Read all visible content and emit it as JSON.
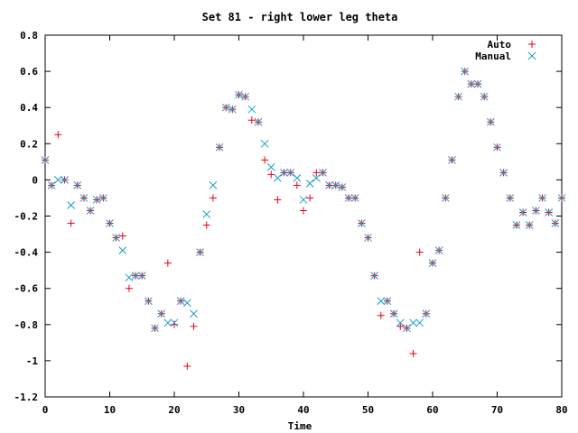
{
  "chart_data": {
    "type": "scatter",
    "title": "Set 81 - right lower leg theta",
    "xlabel": "Time",
    "ylabel": "",
    "xlim": [
      0,
      80
    ],
    "ylim": [
      -1.2,
      0.8
    ],
    "x_ticks": [
      "0",
      "10",
      "20",
      "30",
      "40",
      "50",
      "60",
      "70",
      "80"
    ],
    "y_ticks": [
      "0.8",
      "0.6",
      "0.4",
      "0.2",
      "0",
      "-0.2",
      "-0.4",
      "-0.6",
      "-0.8",
      "-1",
      "-1.2"
    ],
    "grid": false,
    "legend_position": "top-right",
    "series": [
      {
        "name": "Auto",
        "marker": "plus",
        "color": "#e8001a",
        "points": [
          [
            0,
            0.11
          ],
          [
            1,
            -0.03
          ],
          [
            2,
            0.25
          ],
          [
            3,
            0.0
          ],
          [
            4,
            -0.24
          ],
          [
            5,
            -0.03
          ],
          [
            6,
            -0.1
          ],
          [
            7,
            -0.17
          ],
          [
            8,
            -0.11
          ],
          [
            9,
            -0.1
          ],
          [
            10,
            -0.24
          ],
          [
            11,
            -0.32
          ],
          [
            12,
            -0.31
          ],
          [
            13,
            -0.6
          ],
          [
            14,
            -0.53
          ],
          [
            15,
            -0.53
          ],
          [
            16,
            -0.67
          ],
          [
            17,
            -0.82
          ],
          [
            18,
            -0.74
          ],
          [
            19,
            -0.46
          ],
          [
            20,
            -0.8
          ],
          [
            21,
            -0.67
          ],
          [
            22,
            -1.03
          ],
          [
            23,
            -0.81
          ],
          [
            24,
            -0.4
          ],
          [
            25,
            -0.25
          ],
          [
            26,
            -0.1
          ],
          [
            27,
            0.18
          ],
          [
            28,
            0.4
          ],
          [
            29,
            0.39
          ],
          [
            30,
            0.47
          ],
          [
            31,
            0.46
          ],
          [
            32,
            0.33
          ],
          [
            33,
            0.32
          ],
          [
            34,
            0.11
          ],
          [
            35,
            0.03
          ],
          [
            36,
            -0.11
          ],
          [
            37,
            0.04
          ],
          [
            38,
            0.04
          ],
          [
            39,
            -0.03
          ],
          [
            40,
            -0.17
          ],
          [
            41,
            -0.1
          ],
          [
            42,
            0.04
          ],
          [
            43,
            0.04
          ],
          [
            44,
            -0.03
          ],
          [
            45,
            -0.03
          ],
          [
            46,
            -0.04
          ],
          [
            47,
            -0.1
          ],
          [
            48,
            -0.1
          ],
          [
            49,
            -0.24
          ],
          [
            50,
            -0.32
          ],
          [
            51,
            -0.53
          ],
          [
            52,
            -0.75
          ],
          [
            53,
            -0.67
          ],
          [
            54,
            -0.74
          ],
          [
            55,
            -0.81
          ],
          [
            56,
            -0.82
          ],
          [
            57,
            -0.96
          ],
          [
            58,
            -0.4
          ],
          [
            59,
            -0.74
          ],
          [
            60,
            -0.46
          ],
          [
            61,
            -0.39
          ],
          [
            62,
            -0.1
          ],
          [
            63,
            0.11
          ],
          [
            64,
            0.46
          ],
          [
            65,
            0.6
          ],
          [
            66,
            0.53
          ],
          [
            67,
            0.53
          ],
          [
            68,
            0.46
          ],
          [
            69,
            0.32
          ],
          [
            70,
            0.18
          ],
          [
            71,
            0.04
          ],
          [
            72,
            -0.1
          ],
          [
            73,
            -0.25
          ],
          [
            74,
            -0.18
          ],
          [
            75,
            -0.25
          ],
          [
            76,
            -0.17
          ],
          [
            77,
            -0.1
          ],
          [
            78,
            -0.18
          ],
          [
            79,
            -0.24
          ],
          [
            80,
            -0.1
          ]
        ]
      },
      {
        "name": "Manual",
        "marker": "x",
        "color": "#1a9ec8",
        "points": [
          [
            0,
            0.11
          ],
          [
            1,
            -0.03
          ],
          [
            2,
            0.0
          ],
          [
            3,
            0.0
          ],
          [
            4,
            -0.14
          ],
          [
            5,
            -0.03
          ],
          [
            6,
            -0.1
          ],
          [
            7,
            -0.17
          ],
          [
            8,
            -0.11
          ],
          [
            9,
            -0.1
          ],
          [
            10,
            -0.24
          ],
          [
            11,
            -0.32
          ],
          [
            12,
            -0.39
          ],
          [
            13,
            -0.54
          ],
          [
            14,
            -0.53
          ],
          [
            15,
            -0.53
          ],
          [
            16,
            -0.67
          ],
          [
            17,
            -0.82
          ],
          [
            18,
            -0.74
          ],
          [
            19,
            -0.79
          ],
          [
            20,
            -0.79
          ],
          [
            21,
            -0.67
          ],
          [
            22,
            -0.68
          ],
          [
            23,
            -0.74
          ],
          [
            24,
            -0.4
          ],
          [
            25,
            -0.19
          ],
          [
            26,
            -0.03
          ],
          [
            27,
            0.18
          ],
          [
            28,
            0.4
          ],
          [
            29,
            0.39
          ],
          [
            30,
            0.47
          ],
          [
            31,
            0.46
          ],
          [
            32,
            0.39
          ],
          [
            33,
            0.32
          ],
          [
            34,
            0.2
          ],
          [
            35,
            0.07
          ],
          [
            36,
            0.01
          ],
          [
            37,
            0.04
          ],
          [
            38,
            0.04
          ],
          [
            39,
            0.01
          ],
          [
            40,
            -0.11
          ],
          [
            41,
            -0.02
          ],
          [
            42,
            0.01
          ],
          [
            43,
            0.04
          ],
          [
            44,
            -0.03
          ],
          [
            45,
            -0.03
          ],
          [
            46,
            -0.04
          ],
          [
            47,
            -0.1
          ],
          [
            48,
            -0.1
          ],
          [
            49,
            -0.24
          ],
          [
            50,
            -0.32
          ],
          [
            51,
            -0.53
          ],
          [
            52,
            -0.67
          ],
          [
            53,
            -0.67
          ],
          [
            54,
            -0.74
          ],
          [
            55,
            -0.79
          ],
          [
            56,
            -0.82
          ],
          [
            57,
            -0.79
          ],
          [
            58,
            -0.79
          ],
          [
            59,
            -0.74
          ],
          [
            60,
            -0.46
          ],
          [
            61,
            -0.39
          ],
          [
            62,
            -0.1
          ],
          [
            63,
            0.11
          ],
          [
            64,
            0.46
          ],
          [
            65,
            0.6
          ],
          [
            66,
            0.53
          ],
          [
            67,
            0.53
          ],
          [
            68,
            0.46
          ],
          [
            69,
            0.32
          ],
          [
            70,
            0.18
          ],
          [
            71,
            0.04
          ],
          [
            72,
            -0.1
          ],
          [
            73,
            -0.25
          ],
          [
            74,
            -0.18
          ],
          [
            75,
            -0.25
          ],
          [
            76,
            -0.17
          ],
          [
            77,
            -0.1
          ],
          [
            78,
            -0.18
          ],
          [
            79,
            -0.24
          ],
          [
            80,
            -0.1
          ]
        ]
      }
    ]
  }
}
